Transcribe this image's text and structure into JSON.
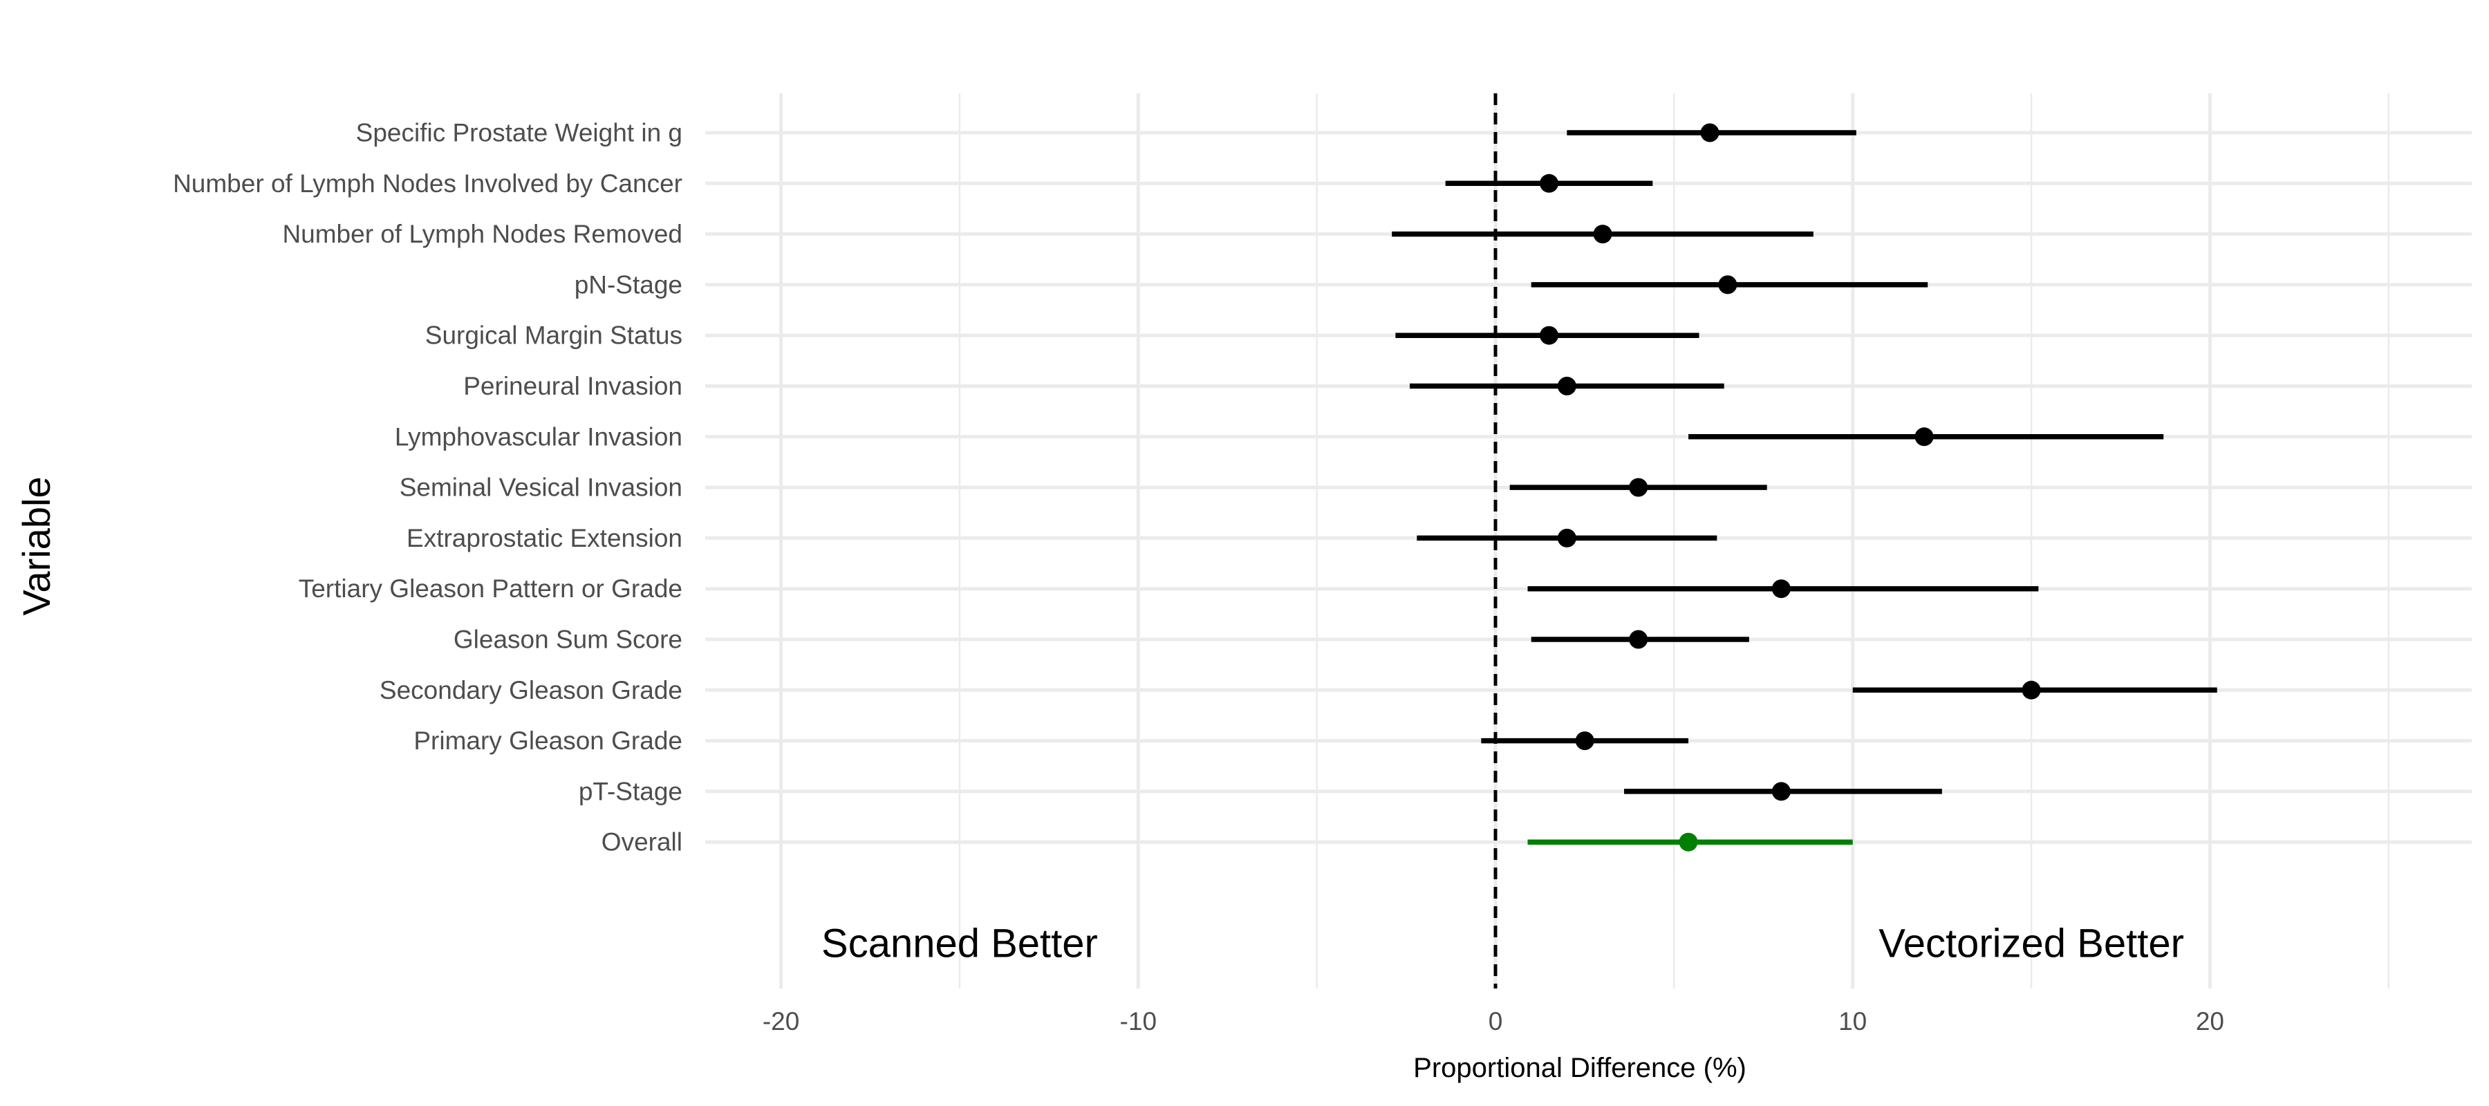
{
  "chart_data": {
    "type": "forest",
    "xlabel": "Proportional Difference (%)",
    "ylabel": "Variable",
    "xlim": [
      -22,
      27.5
    ],
    "x_ticks": [
      -20,
      -10,
      0,
      10,
      20
    ],
    "x_minor_ticks": [
      -15,
      -5,
      5,
      15,
      25
    ],
    "reference_line": 0,
    "grid": true,
    "annotations": [
      {
        "text": "Scanned Better",
        "x": -15,
        "row": -1
      },
      {
        "text": "Vectorized Better",
        "x": 15,
        "row": -1
      }
    ],
    "colors": {
      "default": "#000000",
      "overall": "#008000",
      "grid": "#ebebeb"
    },
    "rows": [
      {
        "label": "Specific Prostate Weight in g",
        "estimate": 6.0,
        "lower": 2.0,
        "upper": 10.1
      },
      {
        "label": "Number of Lymph Nodes Involved by Cancer",
        "estimate": 1.5,
        "lower": -1.4,
        "upper": 4.4
      },
      {
        "label": "Number of Lymph Nodes Removed",
        "estimate": 3.0,
        "lower": -2.9,
        "upper": 8.9
      },
      {
        "label": "pN-Stage",
        "estimate": 6.5,
        "lower": 1.0,
        "upper": 12.1
      },
      {
        "label": "Surgical Margin Status",
        "estimate": 1.5,
        "lower": -2.8,
        "upper": 5.7
      },
      {
        "label": "Perineural Invasion",
        "estimate": 2.0,
        "lower": -2.4,
        "upper": 6.4
      },
      {
        "label": "Lymphovascular Invasion",
        "estimate": 12.0,
        "lower": 5.4,
        "upper": 18.7
      },
      {
        "label": "Seminal Vesical Invasion",
        "estimate": 4.0,
        "lower": 0.4,
        "upper": 7.6
      },
      {
        "label": "Extraprostatic Extension",
        "estimate": 2.0,
        "lower": -2.2,
        "upper": 6.2
      },
      {
        "label": "Tertiary Gleason Pattern or Grade",
        "estimate": 8.0,
        "lower": 0.9,
        "upper": 15.2
      },
      {
        "label": "Gleason Sum Score",
        "estimate": 4.0,
        "lower": 1.0,
        "upper": 7.1
      },
      {
        "label": "Secondary Gleason Grade",
        "estimate": 15.0,
        "lower": 10.0,
        "upper": 20.2
      },
      {
        "label": "Primary Gleason Grade",
        "estimate": 2.5,
        "lower": -0.4,
        "upper": 5.4
      },
      {
        "label": "pT-Stage",
        "estimate": 8.0,
        "lower": 3.6,
        "upper": 12.5
      },
      {
        "label": "Overall",
        "estimate": 5.4,
        "lower": 0.9,
        "upper": 10.0,
        "highlight": true
      }
    ]
  }
}
